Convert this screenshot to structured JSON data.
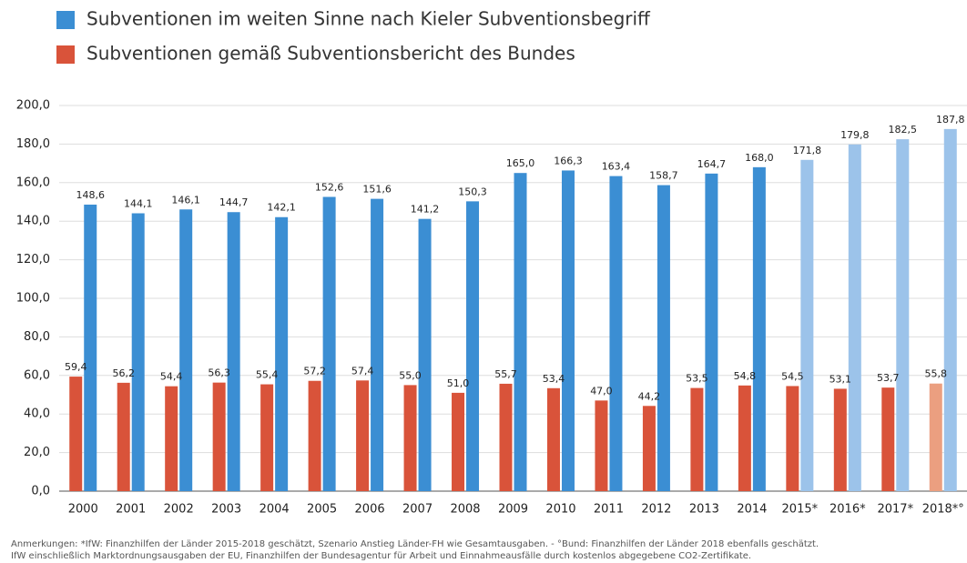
{
  "chart_data": {
    "type": "bar",
    "categories": [
      "2000",
      "2001",
      "2002",
      "2003",
      "2004",
      "2005",
      "2006",
      "2007",
      "2008",
      "2009",
      "2010",
      "2011",
      "2012",
      "2013",
      "2014",
      "2015*",
      "2016*",
      "2017*",
      "2018*°"
    ],
    "series": [
      {
        "name": "Subventionen im weiten Sinne nach Kieler Subventionsbegriff",
        "color": "#3b8ed3",
        "colors": [
          "#3b8ed3",
          "#3b8ed3",
          "#3b8ed3",
          "#3b8ed3",
          "#3b8ed3",
          "#3b8ed3",
          "#3b8ed3",
          "#3b8ed3",
          "#3b8ed3",
          "#3b8ed3",
          "#3b8ed3",
          "#3b8ed3",
          "#3b8ed3",
          "#3b8ed3",
          "#3b8ed3",
          "#9cc3ea",
          "#9cc3ea",
          "#9cc3ea",
          "#9cc3ea"
        ],
        "values": [
          148.6,
          144.1,
          146.1,
          144.7,
          142.1,
          152.6,
          151.6,
          141.2,
          150.3,
          165.0,
          166.3,
          163.4,
          158.7,
          164.7,
          168.0,
          171.8,
          179.8,
          182.5,
          187.8
        ],
        "value_labels": [
          "148,6",
          "144,1",
          "146,1",
          "144,7",
          "142,1",
          "152,6",
          "151,6",
          "141,2",
          "150,3",
          "165,0",
          "166,3",
          "163,4",
          "158,7",
          "164,7",
          "168,0",
          "171,8",
          "179,8",
          "182,5",
          "187,8"
        ]
      },
      {
        "name": "Subventionen gemäß Subventionsbericht des Bundes",
        "color": "#d9533a",
        "colors": [
          "#d9533a",
          "#d9533a",
          "#d9533a",
          "#d9533a",
          "#d9533a",
          "#d9533a",
          "#d9533a",
          "#d9533a",
          "#d9533a",
          "#d9533a",
          "#d9533a",
          "#d9533a",
          "#d9533a",
          "#d9533a",
          "#d9533a",
          "#d9533a",
          "#d9533a",
          "#d9533a",
          "#eb9f80"
        ],
        "values": [
          59.4,
          56.2,
          54.4,
          56.3,
          55.4,
          57.2,
          57.4,
          55.0,
          51.0,
          55.7,
          53.4,
          47.0,
          44.2,
          53.5,
          54.8,
          54.5,
          53.1,
          53.7,
          55.8
        ],
        "value_labels": [
          "59,4",
          "56,2",
          "54,4",
          "56,3",
          "55,4",
          "57,2",
          "57,4",
          "55,0",
          "51,0",
          "55,7",
          "53,4",
          "47,0",
          "44,2",
          "53,5",
          "54,8",
          "54,5",
          "53,1",
          "53,7",
          "55,8"
        ]
      }
    ],
    "ylim": [
      0,
      200
    ],
    "yticks": [
      {
        "value": 0,
        "label": "0,0"
      },
      {
        "value": 20,
        "label": "20,0"
      },
      {
        "value": 40,
        "label": "40,0"
      },
      {
        "value": 60,
        "label": "60,0"
      },
      {
        "value": 80,
        "label": "80,0"
      },
      {
        "value": 100,
        "label": "100,0"
      },
      {
        "value": 120,
        "label": "120,0"
      },
      {
        "value": 140,
        "label": "140,0"
      },
      {
        "value": 160,
        "label": "160,0"
      },
      {
        "value": 180,
        "label": "180,0"
      },
      {
        "value": 200,
        "label": "200,0"
      }
    ],
    "grid": true,
    "notes": [
      "Anmerkungen:  *IfW: Finanzhilfen der Länder 2015-2018 geschätzt, Szenario Anstieg Länder-FH wie Gesamtausgaben. - °Bund: Finanzhilfen der Länder 2018 ebenfalls geschätzt.",
      "IfW einschließlich Marktordnungsausgaben der EU, Finanzhilfen der Bundesagentur für Arbeit und Einnahmeausfälle durch kostenlos abgegebene CO2-Zertifikate."
    ]
  }
}
